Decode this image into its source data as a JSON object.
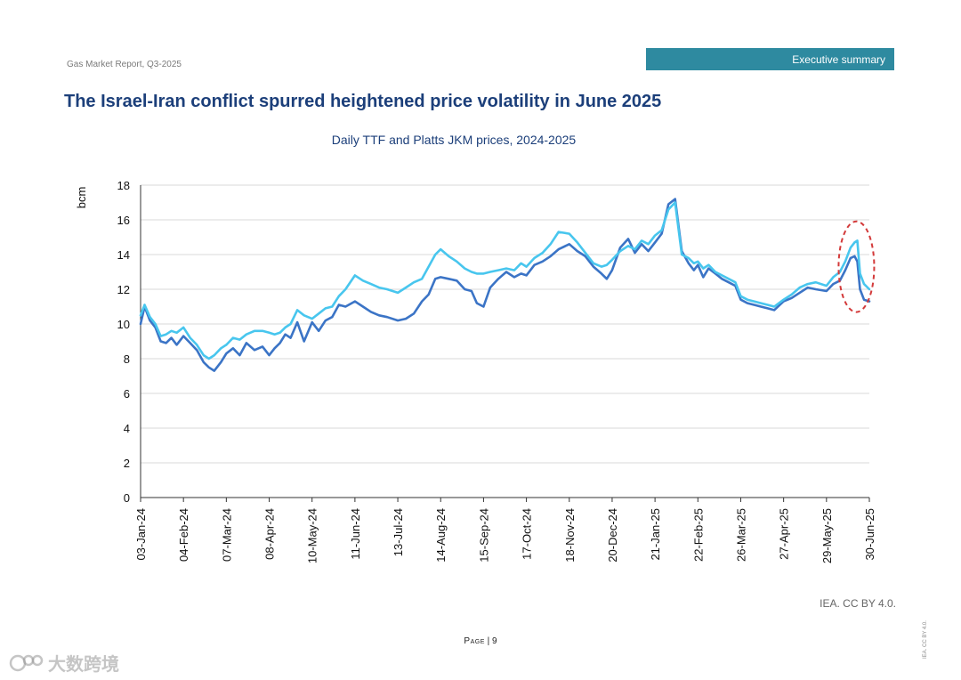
{
  "header": {
    "report_name": "Gas Market Report, Q3-2025",
    "section_badge": "Executive summary"
  },
  "page_title": "The Israel-Iran conflict spurred heightened price volatility in June 2025",
  "footer": {
    "credit": "IEA. CC BY 4.0.",
    "page_label": "Page",
    "page_number": "9",
    "vertical_credit": "IEA. CC BY 4.0."
  },
  "watermark": {
    "text": "大数跨境"
  },
  "colors": {
    "series_dark": "#3b74c6",
    "series_light": "#48c6ee",
    "highlight": "#d33a3a",
    "badge": "#2e8aa0",
    "title": "#1c3f7a"
  },
  "chart_data": {
    "type": "line",
    "title": "Daily TTF and Platts JKM prices, 2024-2025",
    "ylabel": "bcm",
    "xlabel": "",
    "ylim": [
      0,
      18
    ],
    "yticks": [
      0,
      2,
      4,
      6,
      8,
      10,
      12,
      14,
      16,
      18
    ],
    "xlim": [
      "2024-01-03",
      "2025-06-30"
    ],
    "xtick_labels": [
      "03-Jan-24",
      "04-Feb-24",
      "07-Mar-24",
      "08-Apr-24",
      "10-May-24",
      "11-Jun-24",
      "13-Jul-24",
      "14-Aug-24",
      "15-Sep-24",
      "17-Oct-24",
      "18-Nov-24",
      "20-Dec-24",
      "21-Jan-25",
      "22-Feb-25",
      "26-Mar-25",
      "27-Apr-25",
      "29-May-25",
      "30-Jun-25"
    ],
    "grid": true,
    "legend": "none",
    "annotation": "dashed red ellipse around June 2025 price spike",
    "series": [
      {
        "color": "#3b74c6",
        "x": [
          "2024-01-03",
          "2024-01-06",
          "2024-01-10",
          "2024-01-14",
          "2024-01-18",
          "2024-01-22",
          "2024-01-26",
          "2024-01-30",
          "2024-02-04",
          "2024-02-09",
          "2024-02-14",
          "2024-02-19",
          "2024-02-23",
          "2024-02-27",
          "2024-03-03",
          "2024-03-07",
          "2024-03-12",
          "2024-03-17",
          "2024-03-22",
          "2024-03-28",
          "2024-04-03",
          "2024-04-08",
          "2024-04-12",
          "2024-04-16",
          "2024-04-20",
          "2024-04-24",
          "2024-04-29",
          "2024-05-04",
          "2024-05-10",
          "2024-05-15",
          "2024-05-20",
          "2024-05-25",
          "2024-05-30",
          "2024-06-04",
          "2024-06-11",
          "2024-06-17",
          "2024-06-23",
          "2024-06-29",
          "2024-07-05",
          "2024-07-13",
          "2024-07-19",
          "2024-07-25",
          "2024-07-31",
          "2024-08-05",
          "2024-08-10",
          "2024-08-14",
          "2024-08-20",
          "2024-08-26",
          "2024-09-01",
          "2024-09-06",
          "2024-09-10",
          "2024-09-15",
          "2024-09-20",
          "2024-09-26",
          "2024-10-02",
          "2024-10-08",
          "2024-10-13",
          "2024-10-17",
          "2024-10-23",
          "2024-10-29",
          "2024-11-04",
          "2024-11-10",
          "2024-11-18",
          "2024-11-24",
          "2024-11-30",
          "2024-12-06",
          "2024-12-12",
          "2024-12-16",
          "2024-12-20",
          "2024-12-26",
          "2025-01-01",
          "2025-01-06",
          "2025-01-11",
          "2025-01-16",
          "2025-01-21",
          "2025-01-26",
          "2025-01-31",
          "2025-02-05",
          "2025-02-10",
          "2025-02-15",
          "2025-02-19",
          "2025-02-22",
          "2025-02-26",
          "2025-03-02",
          "2025-03-07",
          "2025-03-12",
          "2025-03-17",
          "2025-03-22",
          "2025-03-26",
          "2025-03-31",
          "2025-04-05",
          "2025-04-10",
          "2025-04-15",
          "2025-04-20",
          "2025-04-27",
          "2025-05-03",
          "2025-05-09",
          "2025-05-15",
          "2025-05-21",
          "2025-05-29",
          "2025-06-03",
          "2025-06-08",
          "2025-06-12",
          "2025-06-16",
          "2025-06-19",
          "2025-06-21",
          "2025-06-23",
          "2025-06-26",
          "2025-06-30"
        ],
        "values": [
          10.0,
          11.0,
          10.2,
          9.8,
          9.0,
          8.9,
          9.2,
          8.8,
          9.3,
          8.9,
          8.5,
          7.8,
          7.5,
          7.3,
          7.8,
          8.3,
          8.6,
          8.2,
          8.9,
          8.5,
          8.7,
          8.2,
          8.6,
          8.9,
          9.4,
          9.2,
          10.1,
          9.0,
          10.1,
          9.6,
          10.2,
          10.4,
          11.1,
          11.0,
          11.3,
          11.0,
          10.7,
          10.5,
          10.4,
          10.2,
          10.3,
          10.6,
          11.3,
          11.7,
          12.6,
          12.7,
          12.6,
          12.5,
          12.0,
          11.9,
          11.2,
          11.0,
          12.1,
          12.6,
          13.0,
          12.7,
          12.9,
          12.8,
          13.4,
          13.6,
          13.9,
          14.3,
          14.6,
          14.2,
          13.9,
          13.3,
          12.9,
          12.6,
          13.1,
          14.4,
          14.9,
          14.1,
          14.6,
          14.2,
          14.7,
          15.2,
          16.9,
          17.2,
          14.2,
          13.5,
          13.1,
          13.4,
          12.7,
          13.2,
          12.9,
          12.6,
          12.4,
          12.2,
          11.4,
          11.2,
          11.1,
          11.0,
          10.9,
          10.8,
          11.3,
          11.5,
          11.8,
          12.1,
          12.0,
          11.9,
          12.3,
          12.5,
          13.1,
          13.8,
          13.9,
          13.6,
          12.0,
          11.4,
          11.3
        ]
      },
      {
        "color": "#48c6ee",
        "x": [
          "2024-01-03",
          "2024-01-06",
          "2024-01-10",
          "2024-01-14",
          "2024-01-18",
          "2024-01-22",
          "2024-01-26",
          "2024-01-30",
          "2024-02-04",
          "2024-02-09",
          "2024-02-14",
          "2024-02-19",
          "2024-02-23",
          "2024-02-27",
          "2024-03-03",
          "2024-03-07",
          "2024-03-12",
          "2024-03-17",
          "2024-03-22",
          "2024-03-28",
          "2024-04-03",
          "2024-04-08",
          "2024-04-12",
          "2024-04-16",
          "2024-04-20",
          "2024-04-24",
          "2024-04-29",
          "2024-05-04",
          "2024-05-10",
          "2024-05-15",
          "2024-05-20",
          "2024-05-25",
          "2024-05-30",
          "2024-06-04",
          "2024-06-11",
          "2024-06-17",
          "2024-06-23",
          "2024-06-29",
          "2024-07-05",
          "2024-07-13",
          "2024-07-19",
          "2024-07-25",
          "2024-07-31",
          "2024-08-05",
          "2024-08-10",
          "2024-08-14",
          "2024-08-20",
          "2024-08-26",
          "2024-09-01",
          "2024-09-06",
          "2024-09-10",
          "2024-09-15",
          "2024-09-20",
          "2024-09-26",
          "2024-10-02",
          "2024-10-08",
          "2024-10-13",
          "2024-10-17",
          "2024-10-23",
          "2024-10-29",
          "2024-11-04",
          "2024-11-10",
          "2024-11-18",
          "2024-11-24",
          "2024-11-30",
          "2024-12-06",
          "2024-12-12",
          "2024-12-16",
          "2024-12-20",
          "2024-12-26",
          "2025-01-01",
          "2025-01-06",
          "2025-01-11",
          "2025-01-16",
          "2025-01-21",
          "2025-01-26",
          "2025-01-31",
          "2025-02-05",
          "2025-02-10",
          "2025-02-15",
          "2025-02-19",
          "2025-02-22",
          "2025-02-26",
          "2025-03-02",
          "2025-03-07",
          "2025-03-12",
          "2025-03-17",
          "2025-03-22",
          "2025-03-26",
          "2025-03-31",
          "2025-04-05",
          "2025-04-10",
          "2025-04-15",
          "2025-04-20",
          "2025-04-27",
          "2025-05-03",
          "2025-05-09",
          "2025-05-15",
          "2025-05-21",
          "2025-05-29",
          "2025-06-03",
          "2025-06-08",
          "2025-06-12",
          "2025-06-16",
          "2025-06-19",
          "2025-06-21",
          "2025-06-23",
          "2025-06-26",
          "2025-06-30"
        ],
        "values": [
          10.5,
          11.1,
          10.4,
          10.0,
          9.3,
          9.4,
          9.6,
          9.5,
          9.8,
          9.2,
          8.8,
          8.2,
          8.0,
          8.2,
          8.6,
          8.8,
          9.2,
          9.1,
          9.4,
          9.6,
          9.6,
          9.5,
          9.4,
          9.5,
          9.8,
          10.0,
          10.8,
          10.5,
          10.3,
          10.6,
          10.9,
          11.0,
          11.6,
          12.0,
          12.8,
          12.5,
          12.3,
          12.1,
          12.0,
          11.8,
          12.1,
          12.4,
          12.6,
          13.3,
          14.0,
          14.3,
          13.9,
          13.6,
          13.2,
          13.0,
          12.9,
          12.9,
          13.0,
          13.1,
          13.2,
          13.1,
          13.5,
          13.3,
          13.8,
          14.1,
          14.6,
          15.3,
          15.2,
          14.7,
          14.1,
          13.5,
          13.3,
          13.4,
          13.7,
          14.2,
          14.5,
          14.3,
          14.8,
          14.6,
          15.1,
          15.4,
          16.6,
          17.0,
          14.0,
          13.8,
          13.5,
          13.6,
          13.2,
          13.4,
          13.0,
          12.8,
          12.6,
          12.4,
          11.6,
          11.4,
          11.3,
          11.2,
          11.1,
          11.0,
          11.4,
          11.7,
          12.1,
          12.3,
          12.4,
          12.2,
          12.7,
          13.0,
          13.6,
          14.4,
          14.7,
          14.8,
          12.9,
          12.3,
          12.0
        ]
      }
    ]
  }
}
